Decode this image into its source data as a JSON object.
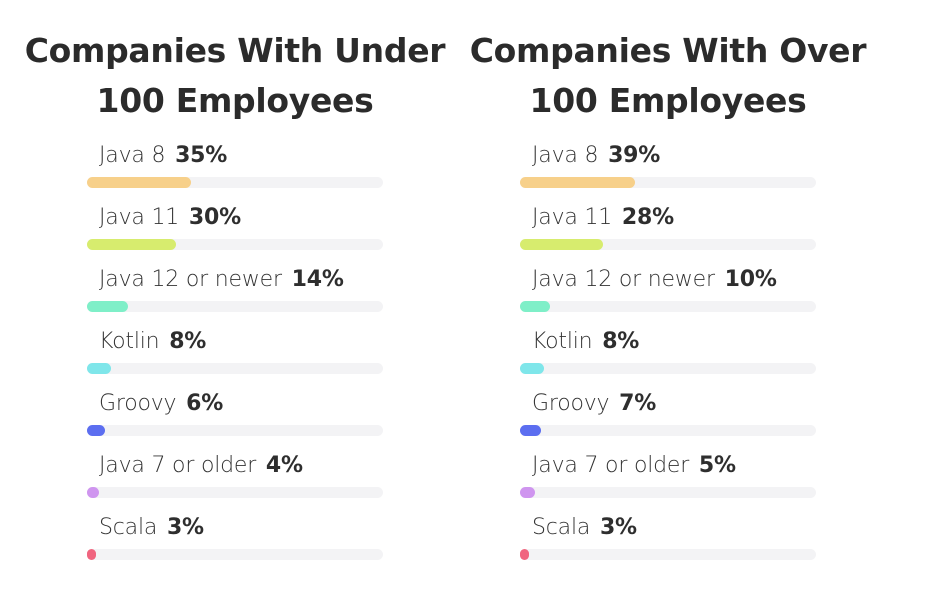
{
  "chart_data": [
    {
      "type": "bar",
      "orientation": "horizontal",
      "title": "Companies With Under 100 Employees",
      "title_lines": [
        "Companies With Under",
        "100 Employees"
      ],
      "categories": [
        "Java 8",
        "Java 11",
        "Java 12 or newer",
        "Kotlin",
        "Groovy",
        "Java 7 or older",
        "Scala"
      ],
      "values": [
        35,
        30,
        14,
        8,
        6,
        4,
        3
      ],
      "value_labels": [
        "35%",
        "30%",
        "14%",
        "8%",
        "6%",
        "4%",
        "3%"
      ],
      "xlim": [
        0,
        100
      ],
      "unit": "%"
    },
    {
      "type": "bar",
      "orientation": "horizontal",
      "title": "Companies With Over 100 Employees",
      "title_lines": [
        "Companies With Over",
        "100 Employees"
      ],
      "categories": [
        "Java 8",
        "Java 11",
        "Java 12 or newer",
        "Kotlin",
        "Groovy",
        "Java 7 or older",
        "Scala"
      ],
      "values": [
        39,
        28,
        10,
        8,
        7,
        5,
        3
      ],
      "value_labels": [
        "39%",
        "28%",
        "10%",
        "8%",
        "7%",
        "5%",
        "3%"
      ],
      "xlim": [
        0,
        100
      ],
      "unit": "%"
    }
  ],
  "colors": {
    "bars": [
      "#f7d08a",
      "#d7ec6e",
      "#7fefc8",
      "#7fe6ea",
      "#5c6ef0",
      "#cf95ef",
      "#f0657f"
    ],
    "track": "#f3f3f5"
  }
}
